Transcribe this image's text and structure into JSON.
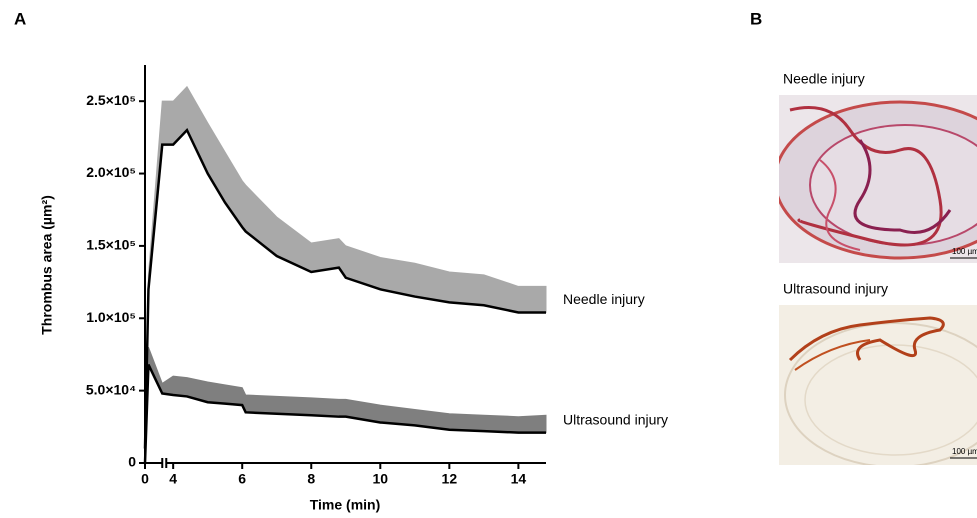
{
  "chart_data": {
    "type": "line",
    "panel_label": "A",
    "xlabel": "Time (min)",
    "ylabel": "Thrombus area (µm²)",
    "x": [
      0,
      0.1,
      0.5,
      4,
      4.4,
      5,
      5.5,
      6,
      6.1,
      7,
      8,
      8.8,
      9,
      10,
      11,
      12,
      13,
      14,
      14.8
    ],
    "xlim": [
      0,
      14.8
    ],
    "x_break": [
      0.5,
      3.8
    ],
    "xticks": [
      0,
      4,
      6,
      8,
      10,
      12,
      14
    ],
    "ylim": [
      0,
      275000
    ],
    "yticks": [
      0,
      {
        "value": 50000,
        "label": "5.0×10⁴"
      },
      {
        "value": 100000,
        "label": "1.0×10⁵"
      },
      {
        "value": 150000,
        "label": "1.5×10⁵"
      },
      {
        "value": 200000,
        "label": "2.0×10⁵"
      },
      {
        "value": 250000,
        "label": "2.5×10⁵"
      }
    ],
    "series": [
      {
        "name": "Needle injury",
        "color": "#000000",
        "band_color": "#a9a9a9",
        "values": [
          10000,
          120000,
          220000,
          220000,
          230000,
          200000,
          180000,
          163000,
          160000,
          143000,
          132000,
          135000,
          128000,
          120000,
          115000,
          111000,
          109000,
          104000,
          104000
        ],
        "error": [
          2000,
          10000,
          30000,
          30000,
          30000,
          35000,
          35000,
          32000,
          32000,
          27000,
          20000,
          20000,
          22000,
          22000,
          23000,
          21000,
          21000,
          18000,
          18000
        ]
      },
      {
        "name": "Ultrasound injury",
        "color": "#000000",
        "band_color": "#7f7f7f",
        "values": [
          0,
          68000,
          48000,
          47000,
          46000,
          42000,
          41000,
          40000,
          35000,
          34000,
          33000,
          32000,
          32000,
          28000,
          26000,
          23000,
          22000,
          21000,
          21000
        ],
        "error": [
          0,
          12000,
          7000,
          13000,
          13000,
          14000,
          13000,
          12000,
          12000,
          12000,
          12000,
          12000,
          12000,
          12000,
          11000,
          11000,
          11000,
          11000,
          12000
        ]
      }
    ]
  },
  "panel_b": {
    "label": "B",
    "images": [
      {
        "title": "Needle injury",
        "scale_bar": "100 µm"
      },
      {
        "title": "Ultrasound injury",
        "scale_bar": "100 µm"
      }
    ]
  }
}
